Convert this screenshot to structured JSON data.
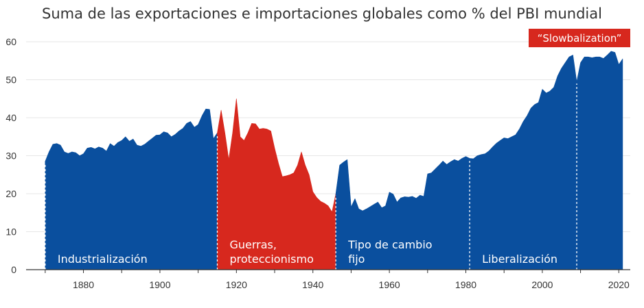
{
  "chart_data": {
    "type": "area",
    "title": "Suma de las exportaciones e importaciones  globales como % del PBI mundial",
    "xlabel": "",
    "ylabel": "",
    "xlim": [
      1865,
      2023
    ],
    "ylim": [
      0,
      60
    ],
    "x_ticks": [
      1880,
      1900,
      1920,
      1940,
      1960,
      1980,
      2000,
      2020
    ],
    "y_ticks": [
      0,
      10,
      20,
      30,
      40,
      50,
      60
    ],
    "grid": "horizontal",
    "legend": "none",
    "colors": {
      "blue": "#0a4f9e",
      "red": "#d7281e",
      "axis": "#333333",
      "grid": "#e6e6e6"
    },
    "series": [
      {
        "values": [
          [
            1870,
            28.5
          ],
          [
            1871,
            31
          ],
          [
            1872,
            33
          ],
          [
            1873,
            33.2
          ],
          [
            1874,
            32.8
          ],
          [
            1875,
            31
          ],
          [
            1876,
            30.6
          ],
          [
            1877,
            31
          ],
          [
            1878,
            30.8
          ],
          [
            1879,
            30
          ],
          [
            1880,
            30.5
          ],
          [
            1881,
            32
          ],
          [
            1882,
            32.2
          ],
          [
            1883,
            31.8
          ],
          [
            1884,
            32.3
          ],
          [
            1885,
            32
          ],
          [
            1886,
            31.2
          ],
          [
            1887,
            33.2
          ],
          [
            1888,
            32.5
          ],
          [
            1889,
            33.5
          ],
          [
            1890,
            34
          ],
          [
            1891,
            35
          ],
          [
            1892,
            33.8
          ],
          [
            1893,
            34.4
          ],
          [
            1894,
            32.8
          ],
          [
            1895,
            32.5
          ],
          [
            1896,
            33
          ],
          [
            1897,
            33.8
          ],
          [
            1898,
            34.6
          ],
          [
            1899,
            35.4
          ],
          [
            1900,
            35.5
          ],
          [
            1901,
            36.3
          ],
          [
            1902,
            36
          ],
          [
            1903,
            35
          ],
          [
            1904,
            35.6
          ],
          [
            1905,
            36.5
          ],
          [
            1906,
            37.2
          ],
          [
            1907,
            38.5
          ],
          [
            1908,
            39
          ],
          [
            1909,
            37.5
          ],
          [
            1910,
            38.2
          ],
          [
            1911,
            40.5
          ],
          [
            1912,
            42.3
          ],
          [
            1913,
            42.2
          ],
          [
            1914,
            34.5
          ],
          [
            1915,
            36
          ]
        ]
      },
      {
        "values": [
          [
            1915,
            36
          ],
          [
            1916,
            42
          ],
          [
            1917,
            36
          ],
          [
            1918,
            29
          ],
          [
            1919,
            36
          ],
          [
            1920,
            45
          ],
          [
            1921,
            35
          ],
          [
            1922,
            34
          ],
          [
            1923,
            36
          ],
          [
            1924,
            38.5
          ],
          [
            1925,
            38.4
          ],
          [
            1926,
            37
          ],
          [
            1927,
            37.2
          ],
          [
            1928,
            37
          ],
          [
            1929,
            36.5
          ],
          [
            1930,
            32
          ],
          [
            1931,
            28
          ],
          [
            1932,
            24.5
          ],
          [
            1933,
            24.7
          ],
          [
            1934,
            25
          ],
          [
            1935,
            25.5
          ],
          [
            1936,
            27.5
          ],
          [
            1937,
            31
          ],
          [
            1938,
            27.5
          ],
          [
            1939,
            25
          ],
          [
            1940,
            20.5
          ],
          [
            1941,
            19
          ],
          [
            1942,
            18
          ],
          [
            1943,
            17.5
          ],
          [
            1944,
            16.8
          ],
          [
            1945,
            15.2
          ],
          [
            1946,
            20
          ]
        ]
      },
      {
        "values": [
          [
            1946,
            20
          ],
          [
            1947,
            27.5
          ],
          [
            1948,
            28.3
          ],
          [
            1949,
            29
          ],
          [
            1950,
            16.5
          ],
          [
            1951,
            18.7
          ],
          [
            1952,
            16
          ],
          [
            1953,
            15.5
          ],
          [
            1954,
            16
          ],
          [
            1955,
            16.6
          ],
          [
            1956,
            17.2
          ],
          [
            1957,
            17.8
          ],
          [
            1958,
            16.3
          ],
          [
            1959,
            16.8
          ],
          [
            1960,
            20.4
          ],
          [
            1961,
            19.9
          ],
          [
            1962,
            17.8
          ],
          [
            1963,
            18.9
          ],
          [
            1964,
            19.2
          ],
          [
            1965,
            19.1
          ],
          [
            1966,
            19.3
          ],
          [
            1967,
            18.8
          ],
          [
            1968,
            19.6
          ],
          [
            1969,
            19.3
          ],
          [
            1970,
            25.2
          ],
          [
            1971,
            25.5
          ],
          [
            1972,
            26.5
          ],
          [
            1973,
            27.5
          ],
          [
            1974,
            28.6
          ],
          [
            1975,
            27.7
          ],
          [
            1976,
            28.4
          ],
          [
            1977,
            29
          ],
          [
            1978,
            28.6
          ],
          [
            1979,
            29.3
          ],
          [
            1980,
            29.8
          ],
          [
            1981,
            29.3
          ],
          [
            1982,
            29.2
          ],
          [
            1983,
            30
          ],
          [
            1984,
            30.3
          ],
          [
            1985,
            30.5
          ],
          [
            1986,
            31.2
          ],
          [
            1987,
            32.3
          ],
          [
            1988,
            33.3
          ],
          [
            1989,
            34
          ],
          [
            1990,
            34.7
          ],
          [
            1991,
            34.5
          ],
          [
            1992,
            35
          ],
          [
            1993,
            35.5
          ],
          [
            1994,
            37
          ],
          [
            1995,
            39
          ],
          [
            1996,
            40.5
          ],
          [
            1997,
            42.5
          ],
          [
            1998,
            43.5
          ],
          [
            1999,
            44
          ],
          [
            2000,
            47.5
          ],
          [
            2001,
            46.5
          ],
          [
            2002,
            47
          ],
          [
            2003,
            48
          ],
          [
            2004,
            51
          ],
          [
            2005,
            53
          ],
          [
            2006,
            54.5
          ],
          [
            2007,
            56
          ],
          [
            2008,
            56.5
          ],
          [
            2009,
            49.5
          ]
        ]
      },
      {
        "values": [
          [
            2009,
            49.5
          ],
          [
            2010,
            54.5
          ],
          [
            2011,
            56
          ],
          [
            2012,
            56
          ],
          [
            2013,
            55.8
          ],
          [
            2014,
            56
          ],
          [
            2015,
            56
          ],
          [
            2016,
            55.6
          ],
          [
            2017,
            56.5
          ],
          [
            2018,
            57.5
          ],
          [
            2019,
            57.2
          ],
          [
            2020,
            54
          ],
          [
            2021,
            55.5
          ]
        ]
      }
    ],
    "eras": [
      {
        "label_lines": [
          "Industrialización"
        ],
        "color": "blue",
        "start": 1870,
        "end": 1915
      },
      {
        "label_lines": [
          "Guerras,",
          "proteccionismo"
        ],
        "color": "red",
        "start": 1915,
        "end": 1946
      },
      {
        "label_lines": [
          "Tipo de cambio",
          "fijo"
        ],
        "color": "blue",
        "start": 1946,
        "end": 1981
      },
      {
        "label_lines": [
          "Liberalización"
        ],
        "color": "blue",
        "start": 1981,
        "end": 2009
      },
      {
        "label_lines": [],
        "color": "red",
        "start": 2009,
        "end": 2021
      }
    ],
    "dividers": [
      1870,
      1915,
      1946,
      1981,
      2009
    ],
    "annotations": [
      {
        "text": "“Slowbalization”"
      }
    ]
  }
}
